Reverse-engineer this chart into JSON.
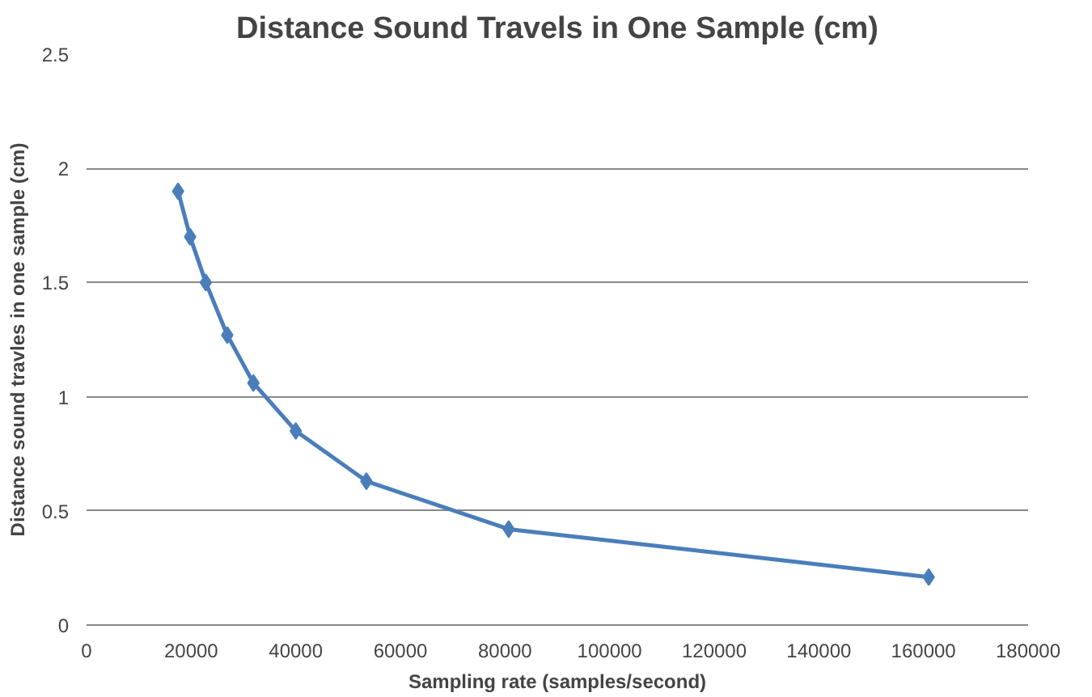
{
  "chart_data": {
    "type": "line",
    "title": "Distance Sound Travels in One Sample (cm)",
    "xlabel": "Sampling rate (samples/second)",
    "ylabel": "Distance sound travles in one sample (cm)",
    "x": [
      17500,
      19800,
      22800,
      26900,
      31900,
      40000,
      53500,
      80700,
      161000
    ],
    "series": [
      {
        "color": "#4a7ebb",
        "values": [
          1.9,
          1.7,
          1.5,
          1.27,
          1.06,
          0.85,
          0.63,
          0.42,
          0.21
        ]
      }
    ],
    "xlim": [
      0,
      180000
    ],
    "xticks": [
      0,
      20000,
      40000,
      60000,
      80000,
      100000,
      120000,
      140000,
      160000,
      180000
    ],
    "ylim": [
      0,
      2.5
    ],
    "yticks": [
      0,
      0.5,
      1,
      1.5,
      2,
      2.5
    ],
    "grid": "y",
    "marker": "diamond",
    "line_style": "solid"
  }
}
